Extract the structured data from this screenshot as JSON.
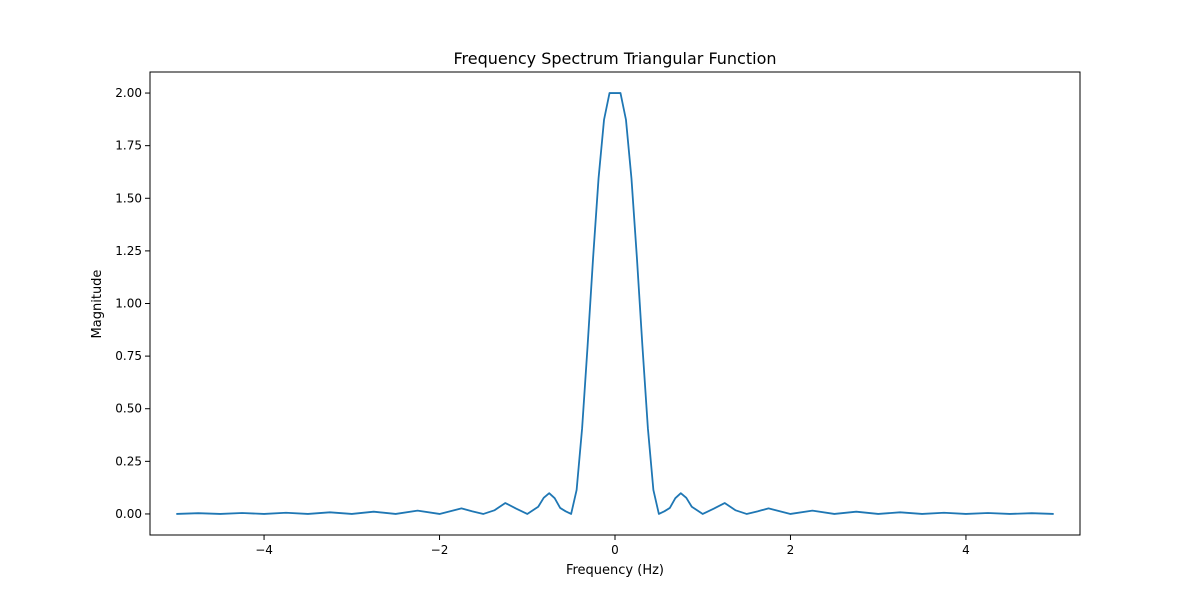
{
  "chart_data": {
    "type": "line",
    "title": "Frequency Spectrum Triangular Function",
    "xlabel": "Frequency (Hz)",
    "ylabel": "Magnitude",
    "xlim": [
      -5.3,
      5.3
    ],
    "ylim": [
      -0.1,
      2.1
    ],
    "x_ticks": [
      -4,
      -2,
      0,
      2,
      4
    ],
    "x_tick_labels": [
      "−4",
      "−2",
      "0",
      "2",
      "4"
    ],
    "y_ticks": [
      0,
      0.25,
      0.5,
      0.75,
      1.0,
      1.25,
      1.5,
      1.75,
      2.0
    ],
    "y_tick_labels": [
      "0.00",
      "0.25",
      "0.50",
      "0.75",
      "1.00",
      "1.25",
      "1.50",
      "1.75",
      "2.00"
    ],
    "grid": false,
    "legend": "none",
    "series": [
      {
        "color": "#1f77b4",
        "x": [
          -5.0,
          -4.75,
          -4.5,
          -4.25,
          -4.0,
          -3.75,
          -3.5,
          -3.25,
          -3.0,
          -2.75,
          -2.5,
          -2.25,
          -2.0,
          -1.75,
          -1.625,
          -1.5,
          -1.375,
          -1.25,
          -1.125,
          -1.0,
          -0.875,
          -0.8125,
          -0.75,
          -0.6875,
          -0.625,
          -0.5625,
          -0.5,
          -0.4375,
          -0.375,
          -0.3125,
          -0.25,
          -0.1875,
          -0.125,
          -0.0625,
          0.0,
          0.0625,
          0.125,
          0.1875,
          0.25,
          0.3125,
          0.375,
          0.4375,
          0.5,
          0.5625,
          0.625,
          0.6875,
          0.75,
          0.8125,
          0.875,
          1.0,
          1.125,
          1.25,
          1.375,
          1.5,
          1.625,
          1.75,
          2.0,
          2.25,
          2.5,
          2.75,
          3.0,
          3.25,
          3.5,
          3.75,
          4.0,
          4.25,
          4.5,
          4.75,
          5.0
        ],
        "y": [
          0.0,
          0.0036,
          0.0,
          0.0045,
          0.0,
          0.0058,
          0.0,
          0.0077,
          0.0,
          0.0107,
          0.0,
          0.016,
          0.0,
          0.0265,
          0.0125,
          0.0,
          0.0172,
          0.0519,
          0.025,
          0.0,
          0.0343,
          0.0766,
          0.0988,
          0.0748,
          0.0286,
          0.0125,
          0.0,
          0.1141,
          0.4062,
          0.7975,
          1.2155,
          1.5947,
          1.8731,
          2.0,
          2.0,
          2.0,
          1.8731,
          1.5947,
          1.2155,
          0.7975,
          0.4062,
          0.1141,
          0.0,
          0.0125,
          0.0286,
          0.0748,
          0.0988,
          0.0766,
          0.0343,
          0.0,
          0.025,
          0.0519,
          0.0172,
          0.0,
          0.0125,
          0.0265,
          0.0,
          0.016,
          0.0,
          0.0107,
          0.0,
          0.0077,
          0.0,
          0.0058,
          0.0,
          0.0045,
          0.0,
          0.0036,
          0.0
        ]
      }
    ]
  }
}
